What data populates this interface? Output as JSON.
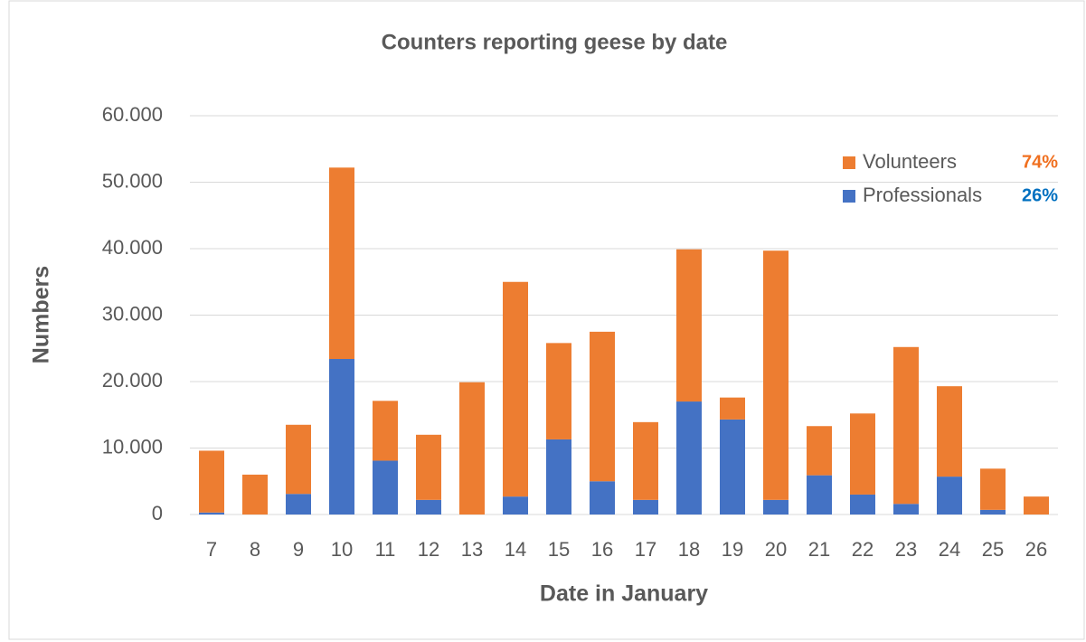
{
  "chart_data": {
    "type": "stacked_bar",
    "title": "Counters reporting geese by date",
    "x_label": "Date in January",
    "y_label": "Numbers",
    "categories": [
      "7",
      "8",
      "9",
      "10",
      "11",
      "12",
      "13",
      "14",
      "15",
      "16",
      "17",
      "18",
      "19",
      "20",
      "21",
      "22",
      "23",
      "24",
      "25",
      "26"
    ],
    "series": [
      {
        "name": "Professionals",
        "color": "#4472c4",
        "share": 26,
        "share_label": "26%",
        "share_color": "#0070c0",
        "values": [
          300,
          0,
          3100,
          23400,
          8100,
          2200,
          0,
          2700,
          11300,
          5000,
          2200,
          17000,
          14300,
          2200,
          5900,
          3000,
          1600,
          5700,
          700,
          0
        ]
      },
      {
        "name": "Volunteers",
        "color": "#ed7d31",
        "share": 74,
        "share_label": "74%",
        "share_color": "#f07020",
        "values": [
          9300,
          6000,
          10400,
          28800,
          9000,
          9800,
          19900,
          32300,
          14500,
          22500,
          11700,
          22900,
          3300,
          37500,
          7400,
          12200,
          23600,
          13600,
          6200,
          2700
        ]
      }
    ],
    "ylim": [
      0,
      60000
    ],
    "yticks": [
      0,
      {
        "value": 10000,
        "label": "10.000"
      },
      {
        "value": 20000,
        "label": "20.000"
      },
      {
        "value": 30000,
        "label": "30.000"
      },
      {
        "value": 40000,
        "label": "40.000"
      },
      {
        "value": 50000,
        "label": "50.000"
      },
      {
        "value": 60000,
        "label": "60.000"
      }
    ],
    "grid": true
  }
}
